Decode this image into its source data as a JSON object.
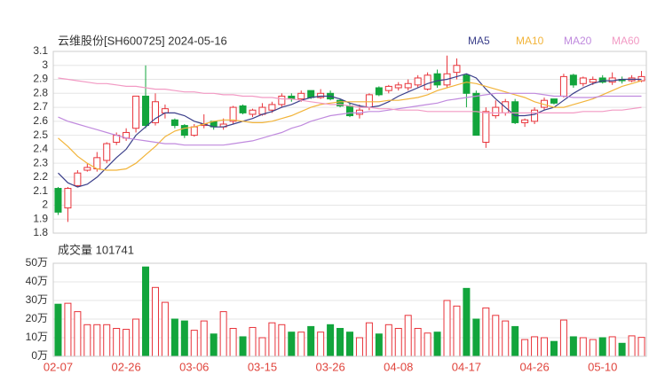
{
  "chart_data": [
    {
      "type": "candlestick",
      "title": "云维股份[SH600725] 2024-05-16",
      "up_color": "#e8333a",
      "down_color": "#12a53c",
      "open": [
        2.12,
        1.98,
        2.14,
        2.25,
        2.26,
        2.32,
        2.45,
        2.48,
        2.55,
        2.78,
        2.59,
        2.66,
        2.61,
        2.57,
        2.5,
        2.57,
        2.6,
        2.56,
        2.6,
        2.71,
        2.65,
        2.65,
        2.68,
        2.72,
        2.78,
        2.76,
        2.82,
        2.77,
        2.8,
        2.75,
        2.71,
        2.65,
        2.7,
        2.84,
        2.82,
        2.84,
        2.84,
        2.86,
        2.83,
        2.94,
        2.86,
        2.95,
        2.93,
        2.8,
        2.45,
        2.64,
        2.66,
        2.74,
        2.59,
        2.6,
        2.7,
        2.76,
        2.78,
        2.93,
        2.87,
        2.88,
        2.91,
        2.88,
        2.9,
        2.89,
        2.89
      ],
      "high": [
        2.13,
        2.13,
        2.25,
        2.3,
        2.38,
        2.45,
        2.52,
        2.55,
        2.78,
        3.0,
        2.8,
        2.72,
        2.62,
        2.58,
        2.58,
        2.65,
        2.6,
        2.62,
        2.71,
        2.72,
        2.69,
        2.73,
        2.74,
        2.8,
        2.8,
        2.82,
        2.82,
        2.83,
        2.82,
        2.76,
        2.73,
        2.72,
        2.8,
        2.85,
        2.86,
        2.88,
        2.9,
        2.93,
        2.95,
        2.97,
        3.07,
        3.05,
        2.94,
        2.82,
        2.7,
        2.75,
        2.76,
        2.76,
        2.62,
        2.7,
        2.77,
        2.76,
        2.94,
        2.94,
        2.92,
        2.92,
        2.93,
        2.95,
        2.92,
        2.93,
        2.96
      ],
      "low": [
        1.93,
        1.88,
        2.13,
        2.24,
        2.24,
        2.3,
        2.43,
        2.46,
        2.52,
        2.55,
        2.57,
        2.62,
        2.55,
        2.48,
        2.49,
        2.55,
        2.54,
        2.54,
        2.58,
        2.65,
        2.63,
        2.64,
        2.66,
        2.7,
        2.74,
        2.74,
        2.76,
        2.76,
        2.75,
        2.7,
        2.63,
        2.62,
        2.68,
        2.78,
        2.8,
        2.82,
        2.82,
        2.84,
        2.82,
        2.84,
        2.84,
        2.9,
        2.7,
        2.5,
        2.41,
        2.62,
        2.64,
        2.58,
        2.56,
        2.58,
        2.68,
        2.72,
        2.77,
        2.84,
        2.85,
        2.86,
        2.87,
        2.86,
        2.87,
        2.88,
        2.88
      ],
      "close": [
        1.95,
        2.12,
        2.23,
        2.27,
        2.34,
        2.44,
        2.5,
        2.52,
        2.78,
        2.57,
        2.74,
        2.69,
        2.57,
        2.5,
        2.56,
        2.58,
        2.56,
        2.58,
        2.7,
        2.66,
        2.68,
        2.7,
        2.72,
        2.78,
        2.76,
        2.8,
        2.77,
        2.8,
        2.76,
        2.71,
        2.64,
        2.68,
        2.79,
        2.79,
        2.85,
        2.86,
        2.87,
        2.91,
        2.93,
        2.86,
        2.94,
        3.0,
        2.8,
        2.5,
        2.67,
        2.7,
        2.74,
        2.59,
        2.61,
        2.68,
        2.75,
        2.73,
        2.92,
        2.86,
        2.91,
        2.9,
        2.88,
        2.91,
        2.89,
        2.91,
        2.92
      ],
      "series": [
        {
          "name": "MA5",
          "color": "#3b3f8a",
          "values": [
            2.23,
            2.16,
            2.13,
            2.15,
            2.2,
            2.27,
            2.34,
            2.4,
            2.5,
            2.56,
            2.62,
            2.66,
            2.66,
            2.64,
            2.6,
            2.58,
            2.56,
            2.56,
            2.58,
            2.6,
            2.62,
            2.65,
            2.67,
            2.7,
            2.72,
            2.75,
            2.77,
            2.78,
            2.78,
            2.76,
            2.73,
            2.71,
            2.7,
            2.71,
            2.74,
            2.78,
            2.81,
            2.84,
            2.87,
            2.89,
            2.9,
            2.92,
            2.94,
            2.91,
            2.83,
            2.76,
            2.7,
            2.64,
            2.64,
            2.65,
            2.68,
            2.7,
            2.75,
            2.8,
            2.84,
            2.87,
            2.89,
            2.89,
            2.9,
            2.9,
            2.9
          ]
        },
        {
          "name": "MA10",
          "color": "#f2b43a",
          "values": [
            2.48,
            2.42,
            2.35,
            2.3,
            2.26,
            2.25,
            2.25,
            2.26,
            2.3,
            2.36,
            2.42,
            2.49,
            2.53,
            2.55,
            2.56,
            2.58,
            2.6,
            2.61,
            2.61,
            2.6,
            2.59,
            2.59,
            2.6,
            2.62,
            2.64,
            2.67,
            2.7,
            2.72,
            2.73,
            2.74,
            2.74,
            2.74,
            2.74,
            2.74,
            2.75,
            2.75,
            2.76,
            2.77,
            2.79,
            2.82,
            2.84,
            2.86,
            2.88,
            2.87,
            2.85,
            2.83,
            2.81,
            2.79,
            2.77,
            2.74,
            2.72,
            2.7,
            2.7,
            2.72,
            2.74,
            2.76,
            2.79,
            2.82,
            2.85,
            2.87,
            2.89
          ]
        },
        {
          "name": "MA20",
          "color": "#c08ade",
          "values": [
            2.63,
            2.6,
            2.58,
            2.56,
            2.54,
            2.52,
            2.5,
            2.48,
            2.47,
            2.46,
            2.45,
            2.44,
            2.44,
            2.43,
            2.43,
            2.43,
            2.43,
            2.43,
            2.44,
            2.45,
            2.46,
            2.48,
            2.5,
            2.52,
            2.55,
            2.57,
            2.6,
            2.62,
            2.64,
            2.65,
            2.66,
            2.66,
            2.67,
            2.67,
            2.68,
            2.69,
            2.7,
            2.71,
            2.72,
            2.73,
            2.75,
            2.76,
            2.77,
            2.78,
            2.79,
            2.8,
            2.8,
            2.8,
            2.8,
            2.8,
            2.79,
            2.78,
            2.78,
            2.77,
            2.77,
            2.77,
            2.78,
            2.78,
            2.78,
            2.78,
            2.78
          ]
        },
        {
          "name": "MA60",
          "color": "#f29ac4",
          "values": [
            2.91,
            2.9,
            2.89,
            2.88,
            2.87,
            2.87,
            2.86,
            2.85,
            2.85,
            2.84,
            2.83,
            2.83,
            2.82,
            2.81,
            2.81,
            2.8,
            2.8,
            2.79,
            2.79,
            2.78,
            2.78,
            2.77,
            2.77,
            2.76,
            2.76,
            2.75,
            2.74,
            2.73,
            2.72,
            2.72,
            2.71,
            2.7,
            2.7,
            2.69,
            2.69,
            2.68,
            2.68,
            2.68,
            2.67,
            2.67,
            2.67,
            2.67,
            2.67,
            2.67,
            2.66,
            2.66,
            2.66,
            2.66,
            2.66,
            2.66,
            2.66,
            2.66,
            2.66,
            2.66,
            2.67,
            2.67,
            2.67,
            2.68,
            2.68,
            2.69,
            2.7
          ]
        }
      ],
      "ylim": [
        1.8,
        3.1
      ],
      "yticks": [
        1.8,
        1.9,
        2,
        2.1,
        2.2,
        2.3,
        2.4,
        2.5,
        2.6,
        2.7,
        2.8,
        2.9,
        3,
        3.1
      ],
      "grid": true
    },
    {
      "type": "bar",
      "title": "成交量 101741",
      "categories": [
        "02-07",
        null,
        null,
        null,
        null,
        null,
        null,
        "02-26",
        null,
        null,
        null,
        null,
        null,
        null,
        "03-06",
        null,
        null,
        null,
        null,
        null,
        null,
        "03-15",
        null,
        null,
        null,
        null,
        null,
        null,
        "03-26",
        null,
        null,
        null,
        null,
        null,
        null,
        "04-08",
        null,
        null,
        null,
        null,
        null,
        null,
        "04-17",
        null,
        null,
        null,
        null,
        null,
        null,
        "04-26",
        null,
        null,
        null,
        null,
        null,
        null,
        "05-10",
        null,
        null,
        null,
        null
      ],
      "values": [
        28,
        28.5,
        24,
        17,
        17,
        17,
        15,
        14.5,
        20,
        48,
        37,
        29,
        20,
        19,
        14,
        19,
        12,
        24,
        15,
        10.5,
        15.5,
        10,
        18,
        17,
        13,
        13,
        16,
        13,
        17,
        15,
        13,
        10,
        18,
        12,
        17,
        15,
        22,
        15,
        12.5,
        13,
        30,
        27,
        36.5,
        20,
        26,
        22,
        19,
        16,
        9,
        10.5,
        10,
        8,
        19.5,
        10.5,
        10,
        9,
        10,
        10.5,
        7,
        11,
        10.1741
      ],
      "ylim": [
        0,
        50
      ],
      "yticks": [
        {
          "value": 0,
          "label": "0万"
        },
        {
          "value": 10,
          "label": "10万"
        },
        {
          "value": 20,
          "label": "20万"
        },
        {
          "value": 30,
          "label": "30万"
        },
        {
          "value": 40,
          "label": "40万"
        },
        {
          "value": 50,
          "label": "50万"
        }
      ],
      "grid": true
    }
  ]
}
